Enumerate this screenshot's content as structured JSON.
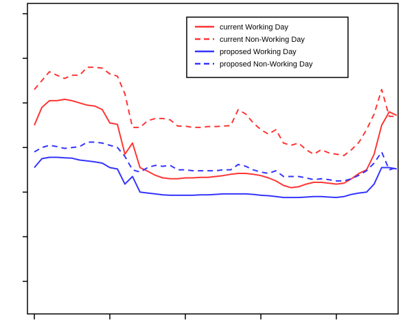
{
  "chart_data": {
    "type": "line",
    "title": "",
    "xlabel": "",
    "ylabel": "",
    "xlim": [
      0,
      48
    ],
    "ylim": [
      0,
      6.5
    ],
    "x_ticks": [
      0,
      10,
      20,
      30,
      40
    ],
    "y_ticks": [
      0.5,
      1.5,
      2.5,
      3.5,
      4.5,
      5.5,
      6.5
    ],
    "grid": false,
    "legend_position": "top-right",
    "x": [
      0,
      1,
      2,
      3,
      4,
      5,
      6,
      7,
      8,
      9,
      10,
      11,
      12,
      13,
      14,
      15,
      16,
      17,
      18,
      19,
      20,
      21,
      22,
      23,
      24,
      25,
      26,
      27,
      28,
      29,
      30,
      31,
      32,
      33,
      34,
      35,
      36,
      37,
      38,
      39,
      40,
      41,
      42,
      43,
      44,
      45,
      46,
      47,
      48
    ],
    "series": [
      {
        "name": "current Working Day",
        "color": "#ff3333",
        "dash": "solid",
        "values": [
          4.0,
          4.4,
          4.55,
          4.55,
          4.58,
          4.55,
          4.5,
          4.45,
          4.43,
          4.35,
          4.05,
          4.02,
          3.35,
          3.6,
          3.05,
          2.97,
          2.88,
          2.82,
          2.8,
          2.8,
          2.82,
          2.82,
          2.83,
          2.83,
          2.85,
          2.87,
          2.9,
          2.92,
          2.92,
          2.9,
          2.87,
          2.82,
          2.75,
          2.65,
          2.6,
          2.62,
          2.68,
          2.72,
          2.72,
          2.7,
          2.68,
          2.7,
          2.8,
          2.92,
          3.0,
          3.35,
          4.0,
          4.3,
          4.22
        ]
      },
      {
        "name": "current Non-Working Day",
        "color": "#ff3333",
        "dash": "dashed",
        "values": [
          4.8,
          5.0,
          5.2,
          5.12,
          5.05,
          5.12,
          5.12,
          5.3,
          5.3,
          5.28,
          5.15,
          5.1,
          4.7,
          3.95,
          3.95,
          4.1,
          4.15,
          4.15,
          4.12,
          3.98,
          3.98,
          3.95,
          3.95,
          3.97,
          3.97,
          3.98,
          3.99,
          4.35,
          4.25,
          4.05,
          3.9,
          3.8,
          3.9,
          3.6,
          3.55,
          3.6,
          3.45,
          3.35,
          3.45,
          3.38,
          3.35,
          3.32,
          3.45,
          3.62,
          3.9,
          4.25,
          4.8,
          4.2,
          4.2
        ]
      },
      {
        "name": "proposed Working Day",
        "color": "#3333ff",
        "dash": "solid",
        "values": [
          3.05,
          3.25,
          3.28,
          3.28,
          3.27,
          3.26,
          3.22,
          3.2,
          3.18,
          3.15,
          3.05,
          3.02,
          2.68,
          2.85,
          2.5,
          2.48,
          2.46,
          2.44,
          2.43,
          2.43,
          2.43,
          2.43,
          2.44,
          2.44,
          2.45,
          2.46,
          2.46,
          2.46,
          2.46,
          2.45,
          2.43,
          2.42,
          2.4,
          2.38,
          2.38,
          2.38,
          2.39,
          2.4,
          2.4,
          2.39,
          2.38,
          2.4,
          2.45,
          2.48,
          2.5,
          2.68,
          3.05,
          3.05,
          3.02
        ]
      },
      {
        "name": "proposed Non-Working Day",
        "color": "#3333ff",
        "dash": "dashed",
        "values": [
          3.4,
          3.5,
          3.55,
          3.52,
          3.48,
          3.5,
          3.52,
          3.62,
          3.62,
          3.6,
          3.55,
          3.5,
          3.3,
          3.0,
          2.95,
          3.05,
          3.1,
          3.08,
          3.1,
          3.0,
          3.0,
          2.98,
          2.98,
          2.98,
          2.98,
          3.0,
          3.0,
          3.12,
          3.08,
          3.0,
          2.95,
          2.92,
          2.98,
          2.85,
          2.85,
          2.85,
          2.82,
          2.78,
          2.8,
          2.78,
          2.75,
          2.75,
          2.8,
          2.88,
          2.98,
          3.15,
          3.4,
          3.0,
          3.05
        ]
      }
    ]
  }
}
